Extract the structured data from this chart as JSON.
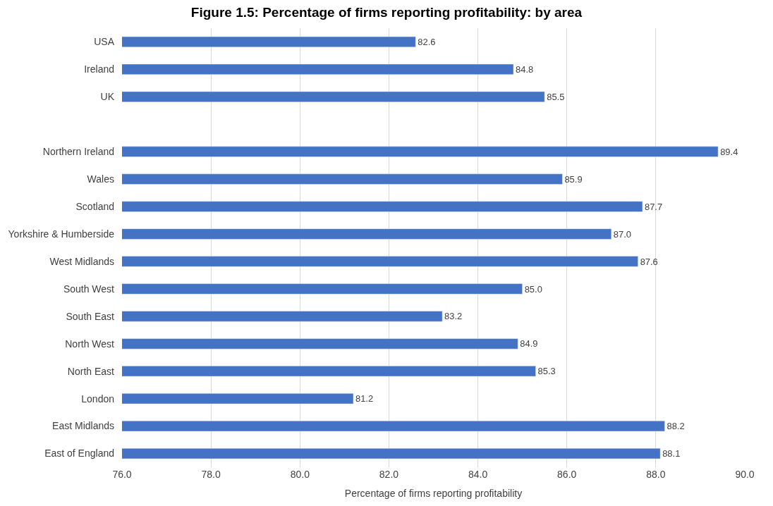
{
  "chart_data": {
    "type": "bar",
    "orientation": "horizontal",
    "title": "Figure 1.5: Percentage of firms reporting profitability: by area",
    "xlabel": "Percentage of firms reporting profitability",
    "categories": [
      "USA",
      "Ireland",
      "UK",
      null,
      "Northern Ireland",
      "Wales",
      "Scotland",
      "Yorkshire & Humberside",
      "West Midlands",
      "South West",
      "South East",
      "North West",
      "North East",
      "London",
      "East Midlands",
      "East of England"
    ],
    "values": [
      82.6,
      84.8,
      85.5,
      null,
      89.4,
      85.9,
      87.7,
      87.0,
      87.6,
      85.0,
      83.2,
      84.9,
      85.3,
      81.2,
      88.2,
      88.1
    ],
    "color": "#4472c4",
    "xlim": [
      76.0,
      90.0
    ],
    "xticks": [
      {
        "value": 76,
        "label": "76.0"
      },
      {
        "value": 78,
        "label": "78.0"
      },
      {
        "value": 80,
        "label": "80.0"
      },
      {
        "value": 82,
        "label": "82.0"
      },
      {
        "value": 84,
        "label": "84.0"
      },
      {
        "value": 86,
        "label": "86.0"
      },
      {
        "value": 88,
        "label": "88.0"
      },
      {
        "value": 90,
        "label": "90.0"
      }
    ],
    "grid": "x",
    "value_labels": [
      "82.6",
      "84.8",
      "85.5",
      null,
      "89.4",
      "85.9",
      "87.7",
      "87.0",
      "87.6",
      "85.0",
      "83.2",
      "84.9",
      "85.3",
      "81.2",
      "88.2",
      "88.1"
    ]
  }
}
